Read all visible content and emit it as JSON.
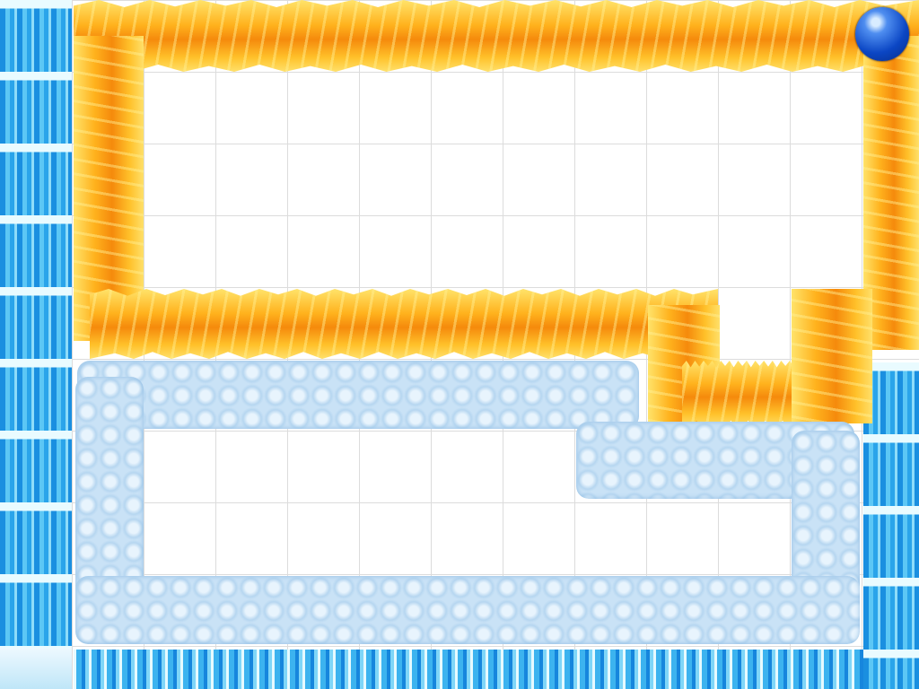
{
  "game": {
    "elements": [
      "water-wall",
      "fire-wall",
      "cloud-wall",
      "ice-floor",
      "player-ball"
    ],
    "colors": {
      "background": "#ffffff",
      "grid_line": "#dcdcdc",
      "fire": "#f58a0c",
      "fire_highlight": "#ffe36a",
      "cloud": "#c9e2f6",
      "water": "#2b9de6",
      "ball": "#0b46c4"
    }
  }
}
